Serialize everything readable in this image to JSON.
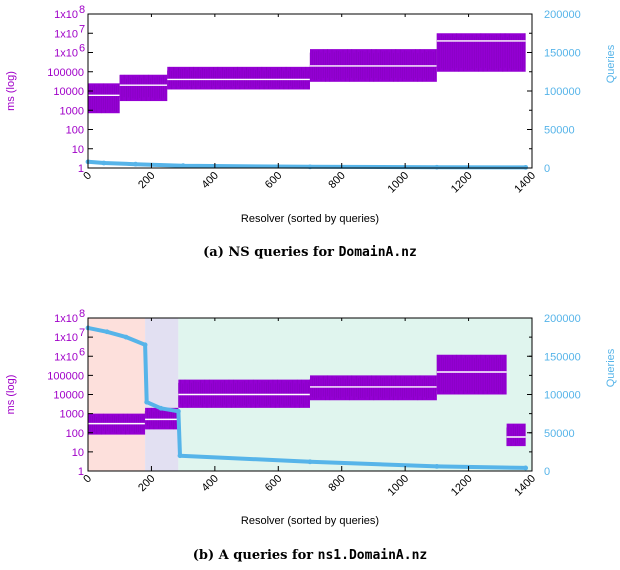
{
  "chart_data": [
    {
      "type": "line",
      "caption_prefix": "(a) NS queries for ",
      "caption_code": "DomainA.nz",
      "xlabel": "Resolver (sorted by queries)",
      "ylabel_left": "ms (log)",
      "ylabel_right": "Queries",
      "x_ticks": [
        "0",
        "200",
        "400",
        "600",
        "800",
        "1000",
        "1200",
        "1400"
      ],
      "y_left_ticks": [
        "1",
        "10",
        "100",
        "1000",
        "10000",
        "100000",
        "1x10",
        "1x10",
        "1x10"
      ],
      "y_left_exponents": [
        "",
        "",
        "",
        "",
        "",
        "",
        "6",
        "7",
        "8"
      ],
      "y_right_ticks": [
        "0",
        "50000",
        "100000",
        "150000",
        "200000"
      ],
      "xlim": [
        0,
        1400
      ],
      "ylim_left_log10": [
        0,
        8
      ],
      "ylim_right": [
        0,
        200000
      ],
      "scale_left": "log",
      "colors": {
        "latency": "#9400d3",
        "median": "#ffffff",
        "queries": "#56b4e9"
      },
      "regions": [],
      "latency_segments": [
        {
          "x": [
            0,
            100
          ],
          "low": 700,
          "high": 25000,
          "median": 6000
        },
        {
          "x": [
            100,
            250
          ],
          "low": 3000,
          "high": 70000,
          "median": 20000
        },
        {
          "x": [
            250,
            700
          ],
          "low": 12000,
          "high": 180000,
          "median": 40000
        },
        {
          "x": [
            700,
            1100
          ],
          "low": 30000,
          "high": 1500000,
          "median": 200000
        },
        {
          "x": [
            1100,
            1380
          ],
          "low": 100000,
          "high": 10000000,
          "median": 4000000
        }
      ],
      "queries_series": [
        {
          "x": 0,
          "y": 8000
        },
        {
          "x": 50,
          "y": 6500
        },
        {
          "x": 150,
          "y": 5000
        },
        {
          "x": 300,
          "y": 3000
        },
        {
          "x": 700,
          "y": 1500
        },
        {
          "x": 1100,
          "y": 1000
        },
        {
          "x": 1380,
          "y": 800
        }
      ]
    },
    {
      "type": "line",
      "caption_prefix": "(b) A queries for ",
      "caption_code": "ns1.DomainA.nz",
      "xlabel": "Resolver (sorted by queries)",
      "ylabel_left": "ms (log)",
      "ylabel_right": "Queries",
      "x_ticks": [
        "0",
        "200",
        "400",
        "600",
        "800",
        "1000",
        "1200",
        "1400"
      ],
      "y_left_ticks": [
        "1",
        "10",
        "100",
        "1000",
        "10000",
        "100000",
        "1x10",
        "1x10",
        "1x10"
      ],
      "y_left_exponents": [
        "",
        "",
        "",
        "",
        "",
        "",
        "6",
        "7",
        "8"
      ],
      "y_right_ticks": [
        "0",
        "50000",
        "100000",
        "150000",
        "200000"
      ],
      "xlim": [
        0,
        1400
      ],
      "ylim_left_log10": [
        0,
        8
      ],
      "ylim_right": [
        0,
        200000
      ],
      "scale_left": "log",
      "colors": {
        "latency": "#9400d3",
        "median": "#ffffff",
        "queries": "#56b4e9"
      },
      "regions": [
        {
          "x": [
            0,
            180
          ],
          "color": "#fde0dc"
        },
        {
          "x": [
            180,
            285
          ],
          "color": "#e2e0f2"
        },
        {
          "x": [
            285,
            1400
          ],
          "color": "#e0f5ee"
        }
      ],
      "latency_segments": [
        {
          "x": [
            0,
            180
          ],
          "low": 80,
          "high": 1000,
          "median": 300
        },
        {
          "x": [
            180,
            285
          ],
          "low": 150,
          "high": 2000,
          "median": 500
        },
        {
          "x": [
            285,
            700
          ],
          "low": 2000,
          "high": 60000,
          "median": 10000
        },
        {
          "x": [
            700,
            1100
          ],
          "low": 5000,
          "high": 100000,
          "median": 25000
        },
        {
          "x": [
            1100,
            1320
          ],
          "low": 10000,
          "high": 1200000,
          "median": 150000
        },
        {
          "x": [
            1320,
            1380
          ],
          "low": 20,
          "high": 300,
          "median": 60
        }
      ],
      "queries_series": [
        {
          "x": 0,
          "y": 187000
        },
        {
          "x": 60,
          "y": 182000
        },
        {
          "x": 120,
          "y": 175000
        },
        {
          "x": 180,
          "y": 165000
        },
        {
          "x": 185,
          "y": 90000
        },
        {
          "x": 230,
          "y": 82000
        },
        {
          "x": 285,
          "y": 78000
        },
        {
          "x": 290,
          "y": 20000
        },
        {
          "x": 700,
          "y": 12000
        },
        {
          "x": 1100,
          "y": 6000
        },
        {
          "x": 1380,
          "y": 4000
        }
      ]
    }
  ]
}
